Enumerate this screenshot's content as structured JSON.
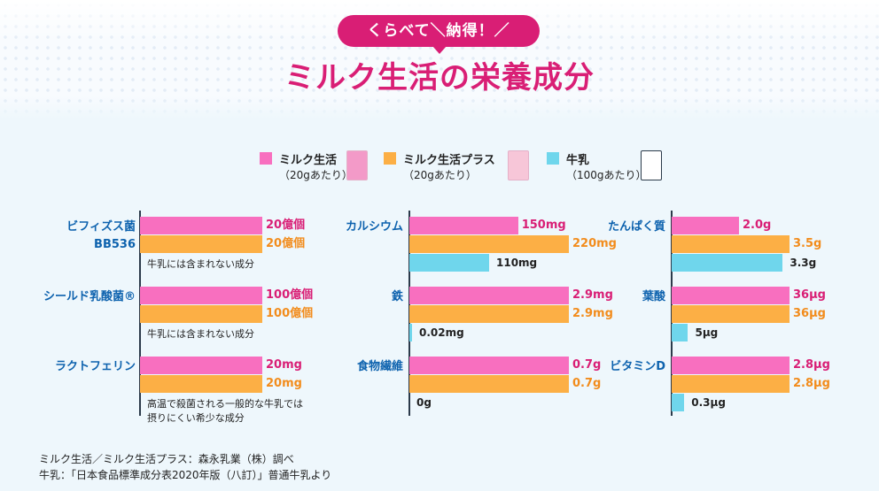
{
  "header": {
    "tagline": "くらべて＼納得！／",
    "title": "ミルク生活の栄養成分"
  },
  "legend": [
    {
      "name": "ミルク生活",
      "unit": "（20gあたり）",
      "color": "#f86fbf",
      "pkg_color": "#f39ac8"
    },
    {
      "name": "ミルク生活プラス",
      "unit": "（20gあたり）",
      "color": "#fcaf45",
      "pkg_color": "#f7c6d8"
    },
    {
      "name": "牛乳",
      "unit": "（100gあたり）",
      "color": "#6fd6ec",
      "pkg_color": "#ffffff"
    }
  ],
  "colors": {
    "milk_seikatsu": "#f86fbf",
    "milk_seikatsu_plus": "#fcaf45",
    "gyunyu": "#6fd6ec",
    "pink_text": "#d91e75",
    "orange_text": "#f28c1c",
    "label_blue": "#0d62ae"
  },
  "chart_data": [
    {
      "type": "bar",
      "title": "",
      "series": [
        {
          "name": "ミルク生活"
        },
        {
          "name": "ミルク生活プラス"
        },
        {
          "name": "牛乳"
        }
      ],
      "categories": [
        {
          "label": "ビフィズス菌\nBB536",
          "values": [
            20,
            20,
            null
          ],
          "value_labels": [
            "20億個",
            "20億個",
            ""
          ],
          "note": "牛乳には含まれない成分"
        },
        {
          "label": "シールド乳酸菌®",
          "values": [
            100,
            100,
            null
          ],
          "value_labels": [
            "100億個",
            "100億個",
            ""
          ],
          "note": "牛乳には含まれない成分"
        },
        {
          "label": "ラクトフェリン",
          "values": [
            20,
            20,
            null
          ],
          "value_labels": [
            "20mg",
            "20mg",
            ""
          ],
          "note": "高温で殺菌される一般的な牛乳では\n摂りにくい希少な成分"
        }
      ]
    },
    {
      "type": "bar",
      "title": "",
      "series": [
        {
          "name": "ミルク生活"
        },
        {
          "name": "ミルク生活プラス"
        },
        {
          "name": "牛乳"
        }
      ],
      "categories": [
        {
          "label": "カルシウム",
          "values": [
            150,
            220,
            110
          ],
          "value_labels": [
            "150mg",
            "220mg",
            "110mg"
          ],
          "note": ""
        },
        {
          "label": "鉄",
          "values": [
            2.9,
            2.9,
            0.02
          ],
          "value_labels": [
            "2.9mg",
            "2.9mg",
            "0.02mg"
          ],
          "note": ""
        },
        {
          "label": "食物繊維",
          "values": [
            0.7,
            0.7,
            0
          ],
          "value_labels": [
            "0.7g",
            "0.7g",
            "0g"
          ],
          "note": ""
        }
      ]
    },
    {
      "type": "bar",
      "title": "",
      "series": [
        {
          "name": "ミルク生活"
        },
        {
          "name": "ミルク生活プラス"
        },
        {
          "name": "牛乳"
        }
      ],
      "categories": [
        {
          "label": "たんぱく質",
          "values": [
            2.0,
            3.5,
            3.3
          ],
          "value_labels": [
            "2.0g",
            "3.5g",
            "3.3g"
          ],
          "note": ""
        },
        {
          "label": "葉酸",
          "values": [
            36,
            36,
            5
          ],
          "value_labels": [
            "36μg",
            "36μg",
            "5μg"
          ],
          "note": ""
        },
        {
          "label": "ビタミンD",
          "values": [
            2.8,
            2.8,
            0.3
          ],
          "value_labels": [
            "2.8μg",
            "2.8μg",
            "0.3μg"
          ],
          "note": ""
        }
      ]
    }
  ],
  "footnotes": [
    "ミルク生活／ミルク生活プラス：森永乳業（株）調べ",
    "牛乳：「日本食品標準成分表2020年版（八訂）」普通牛乳より"
  ]
}
